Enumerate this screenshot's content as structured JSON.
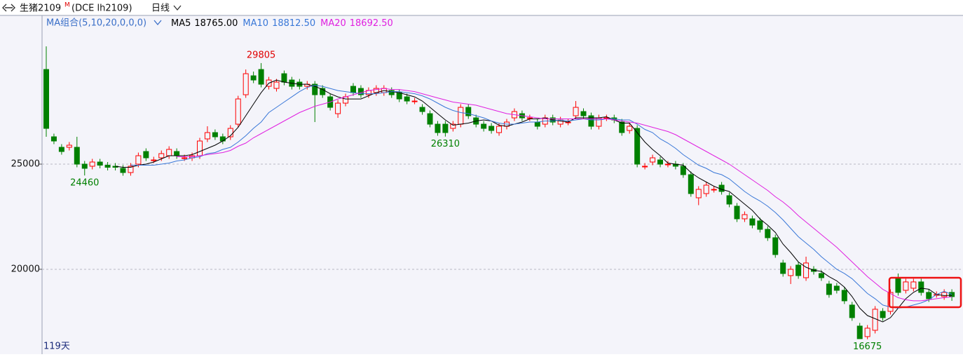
{
  "chart_data": {
    "type": "candlestick",
    "title": "生猪2109",
    "title_superscript": "M",
    "subtitle": "(DCE lh2109)",
    "period": "日线",
    "indicator": "MA组合(5,10,20,0,0,0)",
    "days_label": "119天",
    "up_color": "#ff0000",
    "down_color": "#008000",
    "ylim": [
      16030,
      32070
    ],
    "yticks": [
      20000,
      25000
    ],
    "grid": true,
    "open": [
      29500,
      26300,
      25800,
      25800,
      25800,
      25000,
      24900,
      25100,
      24950,
      24900,
      24800,
      24600,
      25000,
      25600,
      25200,
      25300,
      25400,
      25600,
      25300,
      25300,
      25400,
      26200,
      26500,
      26300,
      26300,
      26900,
      28300,
      29200,
      29500,
      28700,
      28600,
      29300,
      29000,
      28900,
      28700,
      28800,
      28600,
      28200,
      27400,
      27900,
      28700,
      28600,
      28300,
      28400,
      28400,
      28500,
      28400,
      28200,
      28000,
      27700,
      27400,
      26900,
      26900,
      26700,
      26900,
      27700,
      27200,
      26900,
      26800,
      26500,
      26800,
      27200,
      27400,
      27200,
      27000,
      26900,
      27200,
      26900,
      27000,
      27300,
      27500,
      27300,
      26800,
      27200,
      27200,
      27000,
      26600,
      26700,
      24900,
      25100,
      25200,
      25000,
      25000,
      24900,
      24500,
      23400,
      23600,
      23800,
      24000,
      23500,
      23000,
      22400,
      22400,
      22300,
      21900,
      21500,
      20300,
      19700,
      20200,
      19600,
      20000,
      19800,
      19300,
      19200,
      19000,
      18300,
      17300,
      16800,
      17100,
      18000,
      18000,
      19600,
      19000,
      19100,
      19400,
      18900,
      18800,
      18700,
      18900
    ],
    "high": [
      30600,
      26450,
      25950,
      26050,
      26300,
      25150,
      25250,
      25250,
      25100,
      25050,
      24950,
      25050,
      25550,
      25750,
      25350,
      25650,
      25850,
      25750,
      25450,
      25550,
      26250,
      26800,
      26650,
      26450,
      26850,
      28250,
      29500,
      29400,
      29805,
      29150,
      29050,
      29450,
      29150,
      29050,
      28950,
      28950,
      28750,
      28350,
      28050,
      28350,
      28850,
      28750,
      28650,
      28750,
      28750,
      28650,
      28550,
      28350,
      28150,
      27850,
      27550,
      27050,
      27050,
      27050,
      27850,
      27850,
      27350,
      27050,
      26950,
      26950,
      27150,
      27650,
      27550,
      27350,
      27150,
      27350,
      27350,
      27250,
      27150,
      28000,
      27650,
      27450,
      27350,
      27350,
      27350,
      27150,
      26950,
      26850,
      25050,
      25450,
      25350,
      25150,
      25150,
      25050,
      24650,
      23950,
      24150,
      23950,
      24150,
      23650,
      23150,
      22750,
      22550,
      22450,
      22050,
      21650,
      20450,
      20150,
      20350,
      20600,
      20150,
      19950,
      19450,
      19350,
      19150,
      18450,
      17450,
      17350,
      18250,
      18150,
      19050,
      19800,
      19550,
      19550,
      19550,
      19050,
      18950,
      19050,
      19050
    ],
    "low": [
      26300,
      25950,
      25450,
      25650,
      24850,
      24460,
      24750,
      24800,
      24700,
      24700,
      24450,
      24450,
      24850,
      25150,
      25050,
      25150,
      25250,
      25250,
      25150,
      25150,
      25250,
      26050,
      26150,
      25950,
      26150,
      26750,
      28150,
      28850,
      28650,
      28550,
      28450,
      28750,
      28550,
      28550,
      28550,
      27000,
      28150,
      27550,
      27200,
      27750,
      28250,
      28150,
      28150,
      28250,
      28250,
      28150,
      27950,
      27850,
      27850,
      27350,
      26750,
      26350,
      26310,
      26550,
      26750,
      27150,
      26750,
      26550,
      26450,
      26350,
      26650,
      27050,
      27050,
      27050,
      26650,
      26750,
      26850,
      26750,
      26850,
      27150,
      27150,
      26650,
      26650,
      27050,
      26950,
      26350,
      26450,
      24850,
      24750,
      24950,
      24850,
      24850,
      24750,
      24350,
      23450,
      23050,
      23450,
      23650,
      23550,
      22950,
      22250,
      22250,
      21950,
      21750,
      21350,
      20550,
      19650,
      19300,
      19550,
      19450,
      19750,
      19450,
      18650,
      18850,
      18350,
      17550,
      16700,
      16675,
      16950,
      17550,
      17850,
      18750,
      18850,
      18950,
      18750,
      18450,
      18650,
      18550,
      18500
    ],
    "close": [
      26700,
      26100,
      25600,
      25900,
      25000,
      24800,
      25100,
      24950,
      24850,
      24850,
      24600,
      24900,
      25400,
      25300,
      25200,
      25500,
      25700,
      25400,
      25300,
      25400,
      26100,
      26500,
      26300,
      26100,
      26700,
      28100,
      29300,
      29000,
      28800,
      29000,
      28900,
      28900,
      28700,
      28700,
      28800,
      28300,
      28300,
      27700,
      27900,
      28200,
      28400,
      28300,
      28500,
      28600,
      28600,
      28300,
      28100,
      28000,
      28000,
      27500,
      26900,
      26500,
      26500,
      26900,
      27700,
      27300,
      26900,
      26700,
      26600,
      26800,
      27000,
      27500,
      27200,
      27200,
      26800,
      27200,
      27000,
      27100,
      27000,
      27700,
      27300,
      26800,
      27200,
      27200,
      27100,
      26500,
      26800,
      25000,
      24900,
      25300,
      25000,
      25000,
      24900,
      24500,
      23600,
      23800,
      24000,
      23800,
      23700,
      23100,
      22400,
      22600,
      22100,
      21900,
      21500,
      20700,
      19800,
      20000,
      19700,
      20300,
      19900,
      19600,
      18800,
      19000,
      18500,
      17700,
      16700,
      17200,
      18100,
      17700,
      18900,
      18900,
      19400,
      19400,
      18900,
      18600,
      18800,
      18900,
      18700
    ],
    "series": [
      {
        "name": "MA5",
        "color": "#000000",
        "legend_value": "18765.00",
        "values": [
          null,
          null,
          null,
          null,
          null,
          null,
          null,
          null,
          null,
          24900,
          24850,
          24850,
          24950,
          25000,
          25100,
          25250,
          25400,
          25400,
          25400,
          25450,
          25600,
          25750,
          25900,
          26100,
          26350,
          26750,
          27300,
          27850,
          28400,
          28850,
          29000,
          28900,
          28850,
          28800,
          28800,
          28700,
          28550,
          28350,
          28200,
          28100,
          28100,
          28100,
          28250,
          28400,
          28500,
          28450,
          28400,
          28300,
          28200,
          28000,
          27700,
          27400,
          27100,
          26850,
          26900,
          26950,
          27050,
          27100,
          27050,
          26850,
          26800,
          26900,
          27000,
          27150,
          27150,
          27200,
          27100,
          27050,
          27000,
          27200,
          27200,
          27200,
          27200,
          27250,
          27100,
          26950,
          26950,
          26500,
          26050,
          25700,
          25400,
          25050,
          25000,
          24950,
          24600,
          24350,
          24150,
          23950,
          23800,
          23700,
          23400,
          23100,
          22800,
          22400,
          22100,
          21750,
          21200,
          20800,
          20350,
          20100,
          19950,
          19900,
          19650,
          19450,
          19150,
          18700,
          18150,
          17800,
          17650,
          17500,
          17700,
          18150,
          18600,
          18900,
          19100,
          19050,
          18800,
          18750,
          18765
        ]
      },
      {
        "name": "MA10",
        "color": "#3a78d8",
        "legend_value": "18812.50",
        "values": [
          null,
          null,
          null,
          null,
          null,
          null,
          null,
          null,
          null,
          null,
          null,
          24950,
          24950,
          24950,
          24950,
          25000,
          25050,
          25150,
          25200,
          25300,
          25350,
          25500,
          25550,
          25700,
          25800,
          26050,
          26350,
          26700,
          27000,
          27450,
          27700,
          27950,
          28200,
          28450,
          28650,
          28750,
          28700,
          28600,
          28500,
          28450,
          28400,
          28350,
          28350,
          28350,
          28400,
          28450,
          28450,
          28400,
          28350,
          28250,
          28100,
          27900,
          27700,
          27550,
          27450,
          27400,
          27300,
          27200,
          27050,
          26950,
          26900,
          26900,
          26950,
          27000,
          27000,
          27050,
          27050,
          27100,
          27050,
          27100,
          27150,
          27100,
          27100,
          27150,
          27150,
          27100,
          27100,
          26900,
          26650,
          26500,
          26200,
          26000,
          25750,
          25450,
          25200,
          24950,
          24800,
          24600,
          24500,
          24300,
          24000,
          23700,
          23450,
          23250,
          23000,
          22700,
          22350,
          21950,
          21550,
          21250,
          20950,
          20600,
          20300,
          20000,
          19800,
          19550,
          19200,
          18850,
          18600,
          18300,
          18200,
          18150,
          18200,
          18300,
          18400,
          18550,
          18800,
          18950,
          18812.5
        ]
      },
      {
        "name": "MA20",
        "color": "#e020e0",
        "legend_value": "18692.50",
        "values": [
          null,
          null,
          null,
          null,
          null,
          null,
          null,
          null,
          null,
          null,
          null,
          null,
          null,
          null,
          null,
          null,
          null,
          25350,
          25350,
          25350,
          25400,
          25450,
          25500,
          25550,
          25650,
          25850,
          26000,
          26250,
          26450,
          26650,
          26850,
          27050,
          27250,
          27450,
          27600,
          27750,
          27850,
          27950,
          28100,
          28200,
          28300,
          28400,
          28500,
          28550,
          28600,
          28550,
          28550,
          28500,
          28450,
          28350,
          28250,
          28150,
          28050,
          27950,
          27900,
          27850,
          27800,
          27700,
          27600,
          27500,
          27400,
          27350,
          27300,
          27250,
          27200,
          27150,
          27150,
          27150,
          27150,
          27150,
          27150,
          27150,
          27150,
          27150,
          27100,
          27050,
          27000,
          26950,
          26850,
          26750,
          26650,
          26550,
          26400,
          26200,
          26000,
          25800,
          25600,
          25400,
          25200,
          25000,
          24750,
          24500,
          24250,
          24000,
          23750,
          23450,
          23200,
          22900,
          22550,
          22250,
          21950,
          21650,
          21350,
          21050,
          20700,
          20350,
          20000,
          19650,
          19350,
          19050,
          18850,
          18650,
          18550,
          18500,
          18500,
          18550,
          18600,
          18650,
          18692.5
        ]
      }
    ],
    "annotations": [
      {
        "point": 28,
        "field": "high",
        "color": "#e00000"
      },
      {
        "point": 5,
        "field": "low",
        "color": "#008000"
      },
      {
        "point": 52,
        "field": "low",
        "color": "#008000"
      },
      {
        "point": 107,
        "field": "low",
        "color": "#008000"
      }
    ]
  }
}
